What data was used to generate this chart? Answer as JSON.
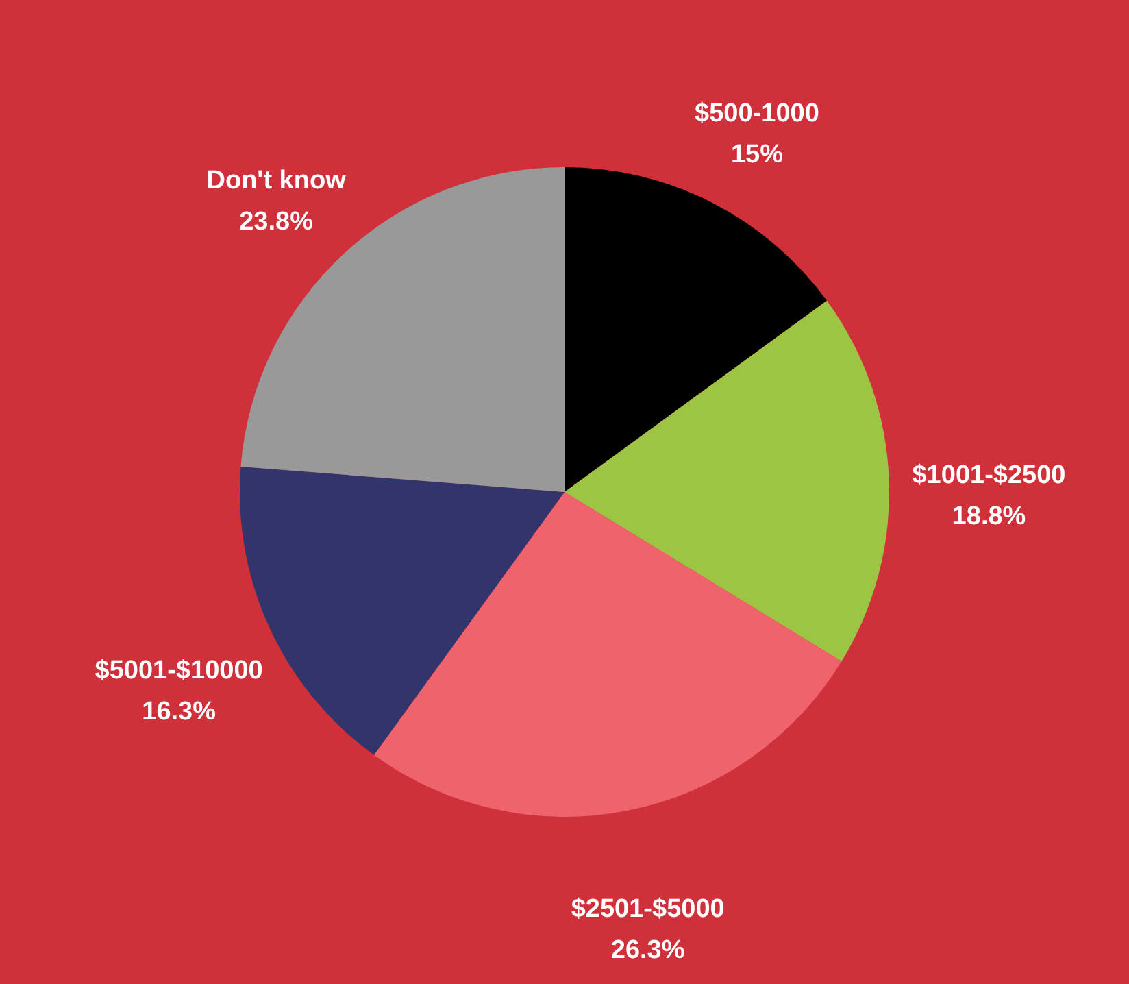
{
  "chart_data": {
    "type": "pie",
    "categories": [
      "$500-1000",
      "$1001-$2500",
      "$2501-$5000",
      "$5001-$10000",
      "Don't know"
    ],
    "values": [
      15,
      18.8,
      26.3,
      16.3,
      23.8
    ],
    "colors": [
      "#000000",
      "#9dc443",
      "#ef636c",
      "#32346c",
      "#999999"
    ],
    "value_labels": [
      "15%",
      "18.8%",
      "26.3%",
      "16.3%",
      "23.8%"
    ]
  }
}
